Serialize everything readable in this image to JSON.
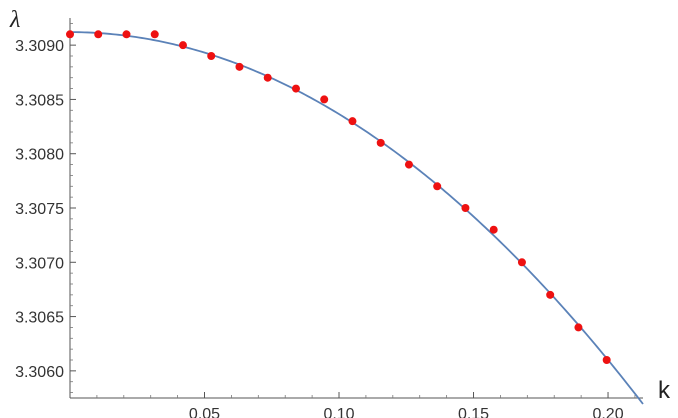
{
  "chart_data": {
    "type": "scatter",
    "xlabel": "k",
    "ylabel": "λ",
    "xlim": [
      0,
      0.213
    ],
    "ylim": [
      3.30575,
      3.30925
    ],
    "x_ticks": [
      0.05,
      0.1,
      0.15,
      0.2
    ],
    "x_tick_labels": [
      "0.05",
      "0.10",
      "0.15",
      "0.20"
    ],
    "y_ticks": [
      3.306,
      3.3065,
      3.307,
      3.3075,
      3.308,
      3.3085,
      3.309
    ],
    "y_tick_labels": [
      "3.3060",
      "3.3065",
      "3.3070",
      "3.3075",
      "3.3080",
      "3.3085",
      "3.3090"
    ],
    "grid": false,
    "series": [
      {
        "type": "scatter",
        "color": "#ee1111",
        "points": [
          [
            0.0,
            3.3091
          ],
          [
            0.0105,
            3.3091
          ],
          [
            0.021,
            3.3091
          ],
          [
            0.0315,
            3.3091
          ],
          [
            0.042,
            3.309
          ],
          [
            0.0525,
            3.3089
          ],
          [
            0.063,
            3.3088
          ],
          [
            0.0735,
            3.3087
          ],
          [
            0.084,
            3.3086
          ],
          [
            0.0945,
            3.3085
          ],
          [
            0.105,
            3.3083
          ],
          [
            0.1155,
            3.3081
          ],
          [
            0.126,
            3.3079
          ],
          [
            0.1365,
            3.3077
          ],
          [
            0.147,
            3.3075
          ],
          [
            0.1575,
            3.3073
          ],
          [
            0.168,
            3.307
          ],
          [
            0.1785,
            3.3067
          ],
          [
            0.189,
            3.3064
          ],
          [
            0.1995,
            3.3061
          ]
        ]
      },
      {
        "type": "line",
        "color": "#5b82b8",
        "curve": {
          "form": "a - b*x^2",
          "a": 3.30912,
          "b": 0.0755,
          "x_range": [
            0,
            0.213
          ]
        }
      }
    ]
  }
}
